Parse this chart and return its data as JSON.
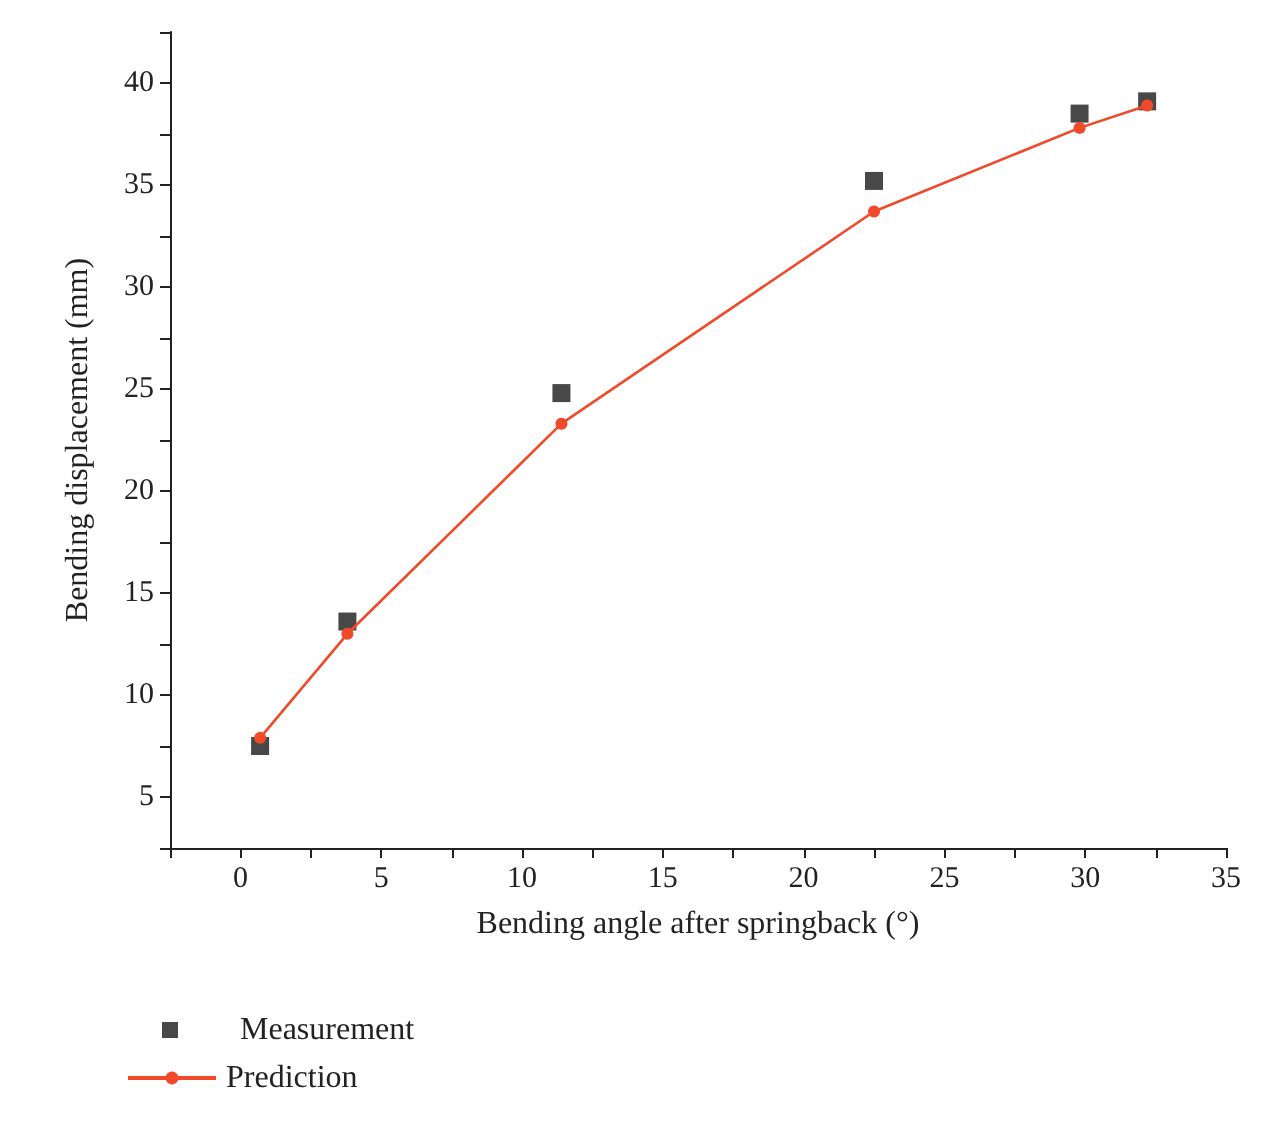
{
  "chart_data": {
    "type": "line",
    "xlabel": "Bending angle after springback (°)",
    "ylabel": "Bending displacement (mm)",
    "x": [
      0.7,
      3.8,
      11.4,
      22.5,
      29.8,
      32.2
    ],
    "series": [
      {
        "name": "Measurement",
        "type": "scatter",
        "marker": "square",
        "color": "#1a1a1a",
        "values": [
          7.5,
          13.6,
          24.8,
          35.2,
          38.5,
          39.1
        ]
      },
      {
        "name": "Prediction",
        "marker": "circle",
        "line_style": "solid",
        "color": "#f04a2a",
        "values": [
          7.9,
          13.0,
          23.3,
          33.7,
          37.8,
          38.9
        ]
      }
    ],
    "xlim": [
      -2.5,
      35
    ],
    "xticks": [
      {
        "value": -2.5,
        "label": null
      },
      0,
      {
        "value": 2.5,
        "label": null
      },
      5,
      {
        "value": 7.5,
        "label": null
      },
      10,
      {
        "value": 12.5,
        "label": null
      },
      15,
      {
        "value": 17.5,
        "label": null
      },
      20,
      {
        "value": 22.5,
        "label": null
      },
      25,
      {
        "value": 27.5,
        "label": null
      },
      30,
      {
        "value": 32.5,
        "label": null
      },
      35
    ],
    "ylim": [
      2.5,
      42.5
    ],
    "yticks": [
      {
        "value": 2.5,
        "label": null
      },
      5,
      {
        "value": 7.5,
        "label": null
      },
      10,
      {
        "value": 12.5,
        "label": null
      },
      15,
      {
        "value": 17.5,
        "label": null
      },
      20,
      {
        "value": 22.5,
        "label": null
      },
      25,
      {
        "value": 27.5,
        "label": null
      },
      30,
      {
        "value": 32.5,
        "label": null
      },
      35,
      {
        "value": 37.5,
        "label": null
      },
      40,
      {
        "value": 42.5,
        "label": null
      }
    ],
    "grid": false,
    "legend": "bottom left"
  }
}
